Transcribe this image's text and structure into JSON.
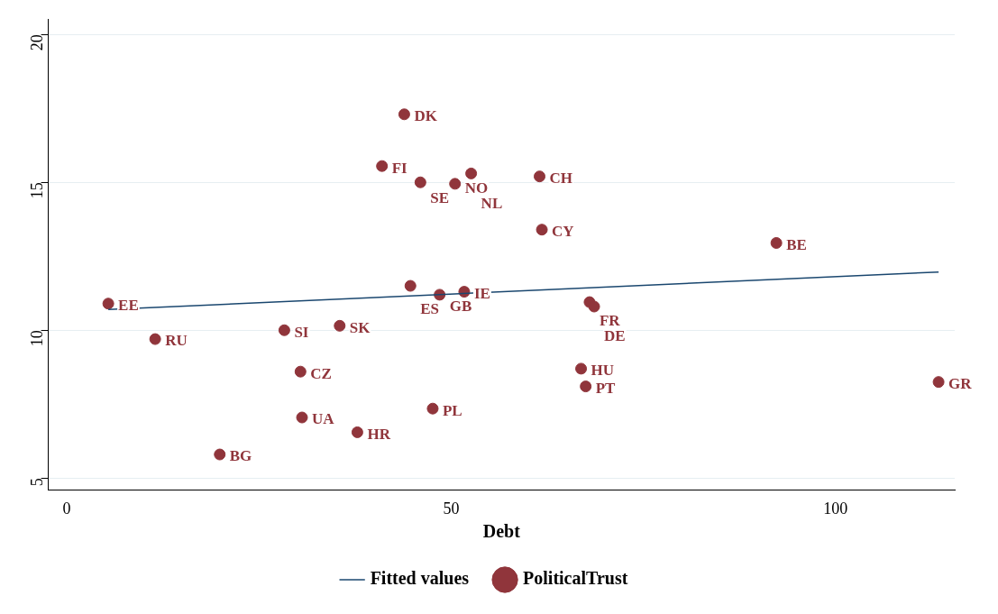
{
  "chart_data": {
    "type": "scatter",
    "xlabel": "Debt",
    "xlim": [
      -2.4,
      115.5
    ],
    "xticks": [
      0,
      50,
      100
    ],
    "ylim": [
      4.6,
      20.5
    ],
    "yticks": [
      5,
      10,
      15,
      20
    ],
    "grid": "y",
    "legend": "bottom",
    "series": [
      {
        "name": "Fitted values",
        "type": "line",
        "color": "#1a476f",
        "x": [
          5.4,
          113.4
        ],
        "values": [
          10.7,
          11.97
        ]
      },
      {
        "name": "PoliticalTrust",
        "type": "scatter",
        "marker": "circle",
        "color": "#90353b",
        "x": [
          43.9,
          41.0,
          46.0,
          50.5,
          52.6,
          61.5,
          61.8,
          92.3,
          5.4,
          11.5,
          28.3,
          35.5,
          44.7,
          48.5,
          51.7,
          68.0,
          68.6,
          66.9,
          67.5,
          113.4,
          30.4,
          30.6,
          47.6,
          37.8,
          19.9
        ],
        "values": [
          17.3,
          15.55,
          15.0,
          14.95,
          15.3,
          15.2,
          13.4,
          12.95,
          10.9,
          9.7,
          10.0,
          10.15,
          11.5,
          11.2,
          11.3,
          10.95,
          10.8,
          8.7,
          8.1,
          8.25,
          8.6,
          7.05,
          7.35,
          6.55,
          5.8
        ]
      }
    ],
    "annotations": [
      {
        "text": "DK",
        "x": 43.9,
        "y": 17.3
      },
      {
        "text": "FI",
        "x": 41.0,
        "y": 15.55
      },
      {
        "text": "SE",
        "x": 46.0,
        "y": 15.0
      },
      {
        "text": "NO",
        "x": 50.5,
        "y": 14.95
      },
      {
        "text": "NL",
        "x": 52.6,
        "y": 15.3
      },
      {
        "text": "CH",
        "x": 61.5,
        "y": 15.2
      },
      {
        "text": "CY",
        "x": 61.8,
        "y": 13.4
      },
      {
        "text": "BE",
        "x": 92.3,
        "y": 12.95
      },
      {
        "text": "EE",
        "x": 5.4,
        "y": 10.9
      },
      {
        "text": "RU",
        "x": 11.5,
        "y": 9.7
      },
      {
        "text": "SI",
        "x": 28.3,
        "y": 10.0
      },
      {
        "text": "SK",
        "x": 35.5,
        "y": 10.15
      },
      {
        "text": "ES",
        "x": 44.7,
        "y": 11.5
      },
      {
        "text": "GB",
        "x": 48.5,
        "y": 11.2
      },
      {
        "text": "IE",
        "x": 51.7,
        "y": 11.3
      },
      {
        "text": "FR",
        "x": 68.0,
        "y": 10.95
      },
      {
        "text": "DE",
        "x": 68.6,
        "y": 10.8
      },
      {
        "text": "HU",
        "x": 66.9,
        "y": 8.7
      },
      {
        "text": "PT",
        "x": 67.5,
        "y": 8.1
      },
      {
        "text": "GR",
        "x": 113.4,
        "y": 8.25
      },
      {
        "text": "CZ",
        "x": 30.4,
        "y": 8.6
      },
      {
        "text": "UA",
        "x": 30.6,
        "y": 7.05
      },
      {
        "text": "PL",
        "x": 47.6,
        "y": 7.35
      },
      {
        "text": "HR",
        "x": 37.8,
        "y": 6.55
      },
      {
        "text": "BG",
        "x": 19.9,
        "y": 5.8
      }
    ]
  }
}
